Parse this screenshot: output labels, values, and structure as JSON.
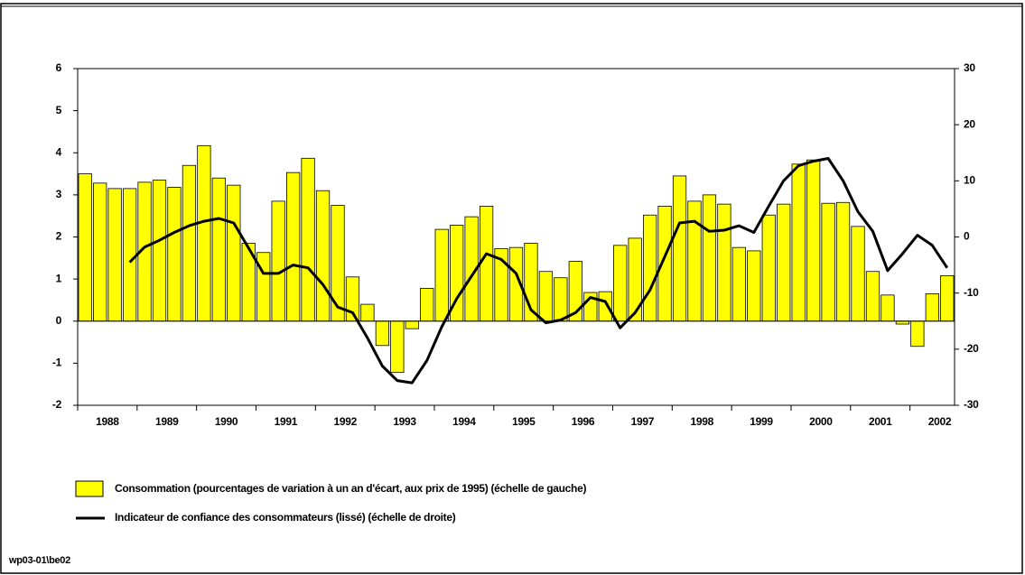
{
  "chart_data": {
    "type": "bar-line",
    "categories": [
      null,
      "1988",
      null,
      null,
      null,
      "1989",
      null,
      null,
      null,
      "1990",
      null,
      null,
      null,
      "1991",
      null,
      null,
      null,
      "1992",
      null,
      null,
      null,
      "1993",
      null,
      null,
      null,
      "1994",
      null,
      null,
      null,
      "1995",
      null,
      null,
      null,
      "1996",
      null,
      null,
      null,
      "1997",
      null,
      null,
      null,
      "1998",
      null,
      null,
      null,
      "1999",
      null,
      null,
      null,
      "2000",
      null,
      null,
      null,
      "2001",
      null,
      null,
      null,
      "2002",
      null
    ],
    "series": [
      {
        "name": "Consommation (pourcentages de variation à un an d'écart, aux prix de 1995) (échelle de gauche)",
        "type": "bar",
        "color": "#ffff00",
        "values": [
          3.5,
          3.28,
          3.15,
          3.15,
          3.3,
          3.35,
          3.18,
          3.7,
          4.17,
          3.4,
          3.23,
          1.85,
          1.63,
          2.85,
          3.53,
          3.87,
          3.1,
          2.75,
          1.05,
          0.4,
          -0.58,
          -1.22,
          -0.18,
          0.78,
          2.18,
          2.28,
          2.48,
          2.73,
          1.72,
          1.75,
          1.85,
          1.18,
          1.03,
          1.42,
          0.68,
          0.7,
          1.8,
          1.97,
          2.52,
          2.73,
          3.45,
          2.85,
          3.0,
          2.78,
          1.75,
          1.67,
          2.52,
          2.78,
          3.73,
          3.83,
          2.8,
          2.82,
          2.25,
          1.18,
          0.62,
          -0.07,
          -0.6,
          0.65,
          1.08
        ]
      },
      {
        "name": "Indicateur de confiance des consommateurs (lissé) (échelle de droite)",
        "type": "line",
        "axis": "y2",
        "color": "#000000",
        "values": [
          null,
          null,
          null,
          -4.5,
          -1.8,
          -0.6,
          0.8,
          2,
          2.8,
          3.3,
          2.5,
          -2,
          -6.5,
          -6.5,
          -5,
          -5.5,
          -8.5,
          -12.5,
          -13.5,
          -18,
          -23,
          -25.6,
          -26,
          -22,
          -16,
          -11,
          -7,
          -3,
          -4,
          -6.5,
          -13,
          -15.3,
          -14.8,
          -13.5,
          -10.8,
          -11.5,
          -16.2,
          -13.5,
          -9.5,
          -3.5,
          2.5,
          2.8,
          1,
          1.2,
          2,
          0.8,
          5.5,
          10,
          12.7,
          13.5,
          14,
          10,
          4.5,
          1,
          -6,
          -3,
          0.3,
          -1.5,
          -5.5
        ]
      }
    ],
    "ylim": [
      -2,
      6
    ],
    "yticks": [
      -2,
      -1,
      0,
      1,
      2,
      3,
      4,
      5,
      6
    ],
    "y2lim": [
      -30,
      30
    ],
    "y2ticks": [
      -30,
      -20,
      -10,
      0,
      10,
      20,
      30
    ],
    "footer": "wp03-01\\be02"
  }
}
